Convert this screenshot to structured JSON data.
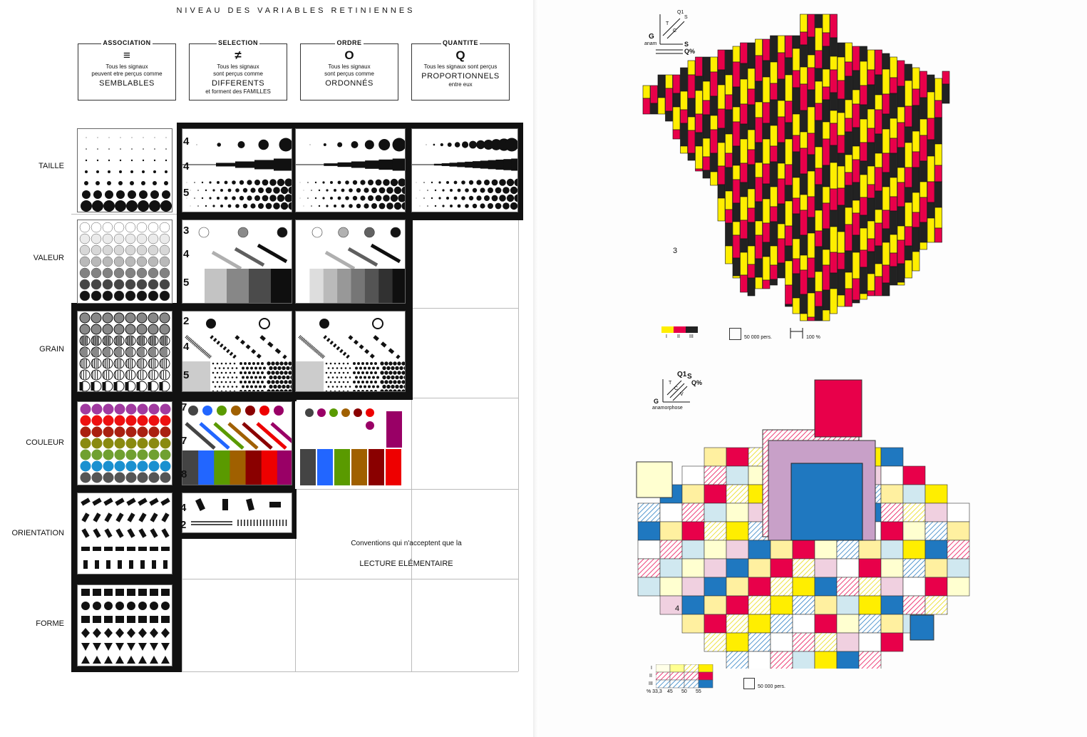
{
  "title": "NIVEAU DES VARIABLES RETINIENNES",
  "levels": [
    {
      "caption": "ASSOCIATION",
      "symbol": "≡",
      "line1": "Tous les signaux",
      "line2": "peuvent etre perçus comme",
      "emph": "SEMBLABLES",
      "line3": ""
    },
    {
      "caption": "SELECTION",
      "symbol": "≠",
      "line1": "Tous les signaux",
      "line2": "sont perçus comme",
      "emph": "DIFFERENTS",
      "line3": "et forment des FAMILLES"
    },
    {
      "caption": "ORDRE",
      "symbol": "O",
      "line1": "Tous les signaux",
      "line2": "sont perçus comme",
      "emph": "ORDONNÉS",
      "line3": ""
    },
    {
      "caption": "QUANTITE",
      "symbol": "Q",
      "line1": "Tous les signaux sont perçus",
      "line2": "",
      "emph": "PROPORTIONNELS",
      "line3": "entre eux"
    }
  ],
  "rows": [
    {
      "label": "TAILLE",
      "steps": [
        "4",
        "4",
        "5"
      ]
    },
    {
      "label": "VALEUR",
      "steps": [
        "3",
        "4",
        "5"
      ]
    },
    {
      "label": "GRAIN",
      "steps": [
        "2",
        "4",
        "5"
      ]
    },
    {
      "label": "COULEUR",
      "steps": [
        "7",
        "7",
        "8"
      ]
    },
    {
      "label": "ORIENTATION",
      "steps": [
        "4",
        "2"
      ]
    },
    {
      "label": "FORME",
      "steps": []
    }
  ],
  "conventions": {
    "line1": "Conventions qui n'acceptent que la",
    "line2": "LECTURE ELÉMENTAIRE"
  },
  "colors": {
    "yellow": "#ffee00",
    "red": "#e8004a",
    "black": "#222222",
    "blue": "#1f78c0",
    "hue_series": [
      "#444444",
      "#2266ff",
      "#5a9a00",
      "#a06000",
      "#8a0000",
      "#ee0000",
      "#990066"
    ]
  },
  "map3": {
    "number": "3",
    "axis": {
      "g": "G",
      "anam": "anam",
      "s": "S",
      "q_pct": "Q%",
      "q1": "Q1",
      "s2": "S",
      "t": "T",
      "c": "C"
    },
    "legend": {
      "classes": [
        "I",
        "II",
        "III"
      ],
      "square": "50 000 pers.",
      "bar": "100 %"
    }
  },
  "map4": {
    "number": "4",
    "axis": {
      "g": "G",
      "anam": "anamorphose",
      "q1": "Q1",
      "s": "S",
      "q_pct": "Q%",
      "t": "T",
      "c": "C",
      "v": "V"
    },
    "legend": {
      "rows": [
        "I",
        "II",
        "III"
      ],
      "cols": [
        "% 33,3",
        "45",
        "50",
        "55"
      ],
      "square": "50 000 pers."
    }
  }
}
